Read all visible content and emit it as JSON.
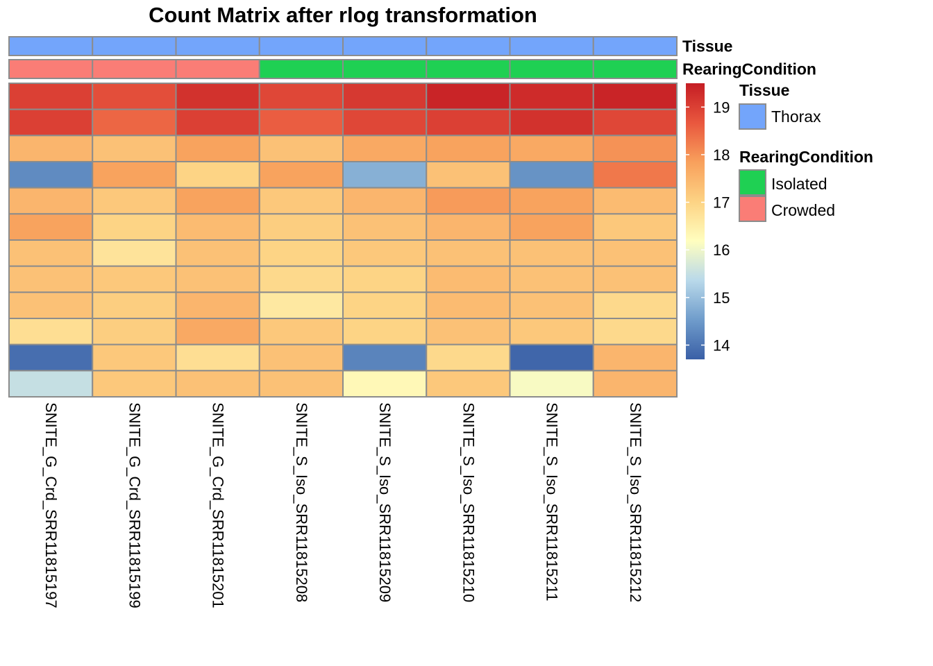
{
  "chart_data": {
    "type": "heatmap",
    "title": "Count Matrix after rlog transformation",
    "columns": [
      "SNITE_G_Crd_SRR11815197",
      "SNITE_G_Crd_SRR11815199",
      "SNITE_G_Crd_SRR11815201",
      "SNITE_S_Iso_SRR11815208",
      "SNITE_S_Iso_SRR11815209",
      "SNITE_S_Iso_SRR11815210",
      "SNITE_S_Iso_SRR11815211",
      "SNITE_S_Iso_SRR11815212"
    ],
    "annotations": [
      {
        "name": "Tissue",
        "values": [
          "Thorax",
          "Thorax",
          "Thorax",
          "Thorax",
          "Thorax",
          "Thorax",
          "Thorax",
          "Thorax"
        ]
      },
      {
        "name": "RearingCondition",
        "values": [
          "Crowded",
          "Crowded",
          "Crowded",
          "Isolated",
          "Isolated",
          "Isolated",
          "Isolated",
          "Isolated"
        ]
      }
    ],
    "annotation_colors": {
      "Tissue": {
        "Thorax": "#73a5fb"
      },
      "RearingCondition": {
        "Isolated": "#1fd053",
        "Crowded": "#fa7d76"
      }
    },
    "values": [
      [
        19.0,
        18.8,
        19.2,
        18.9,
        19.1,
        19.4,
        19.3,
        19.4
      ],
      [
        19.0,
        18.5,
        19.0,
        18.6,
        18.9,
        19.0,
        19.2,
        18.9
      ],
      [
        17.5,
        17.3,
        17.8,
        17.3,
        17.7,
        17.8,
        17.7,
        18.0
      ],
      [
        14.3,
        17.8,
        17.0,
        17.8,
        14.8,
        17.3,
        14.4,
        18.3
      ],
      [
        17.5,
        17.2,
        17.8,
        17.2,
        17.5,
        17.9,
        17.8,
        17.4
      ],
      [
        17.8,
        17.0,
        17.4,
        17.1,
        17.3,
        17.5,
        17.8,
        17.2
      ],
      [
        17.3,
        16.7,
        17.3,
        17.0,
        17.2,
        17.3,
        17.3,
        17.3
      ],
      [
        17.3,
        17.2,
        17.3,
        16.9,
        17.0,
        17.4,
        17.3,
        17.3
      ],
      [
        17.3,
        17.1,
        17.5,
        16.6,
        17.0,
        17.4,
        17.3,
        16.9
      ],
      [
        16.8,
        17.1,
        17.7,
        17.2,
        17.0,
        17.3,
        17.2,
        16.9
      ],
      [
        13.9,
        17.2,
        16.8,
        17.3,
        14.2,
        16.9,
        13.8,
        17.5
      ],
      [
        15.5,
        17.2,
        17.3,
        17.3,
        16.3,
        17.2,
        16.1,
        17.5
      ]
    ],
    "color_scale": {
      "ticks": [
        14,
        15,
        16,
        17,
        18,
        19
      ],
      "range": [
        13.7,
        19.5
      ],
      "colors": [
        "#3a5fa6",
        "#6f9ccb",
        "#b9d9ea",
        "#fffebf",
        "#fdd384",
        "#f8a05c",
        "#e9573e",
        "#c51d24"
      ]
    },
    "legend": {
      "Tissue": {
        "title": "Tissue",
        "items": [
          "Thorax"
        ]
      },
      "RearingCondition": {
        "title": "RearingCondition",
        "items": [
          "Isolated",
          "Crowded"
        ]
      }
    },
    "grid_color": "#8c8c8c"
  }
}
